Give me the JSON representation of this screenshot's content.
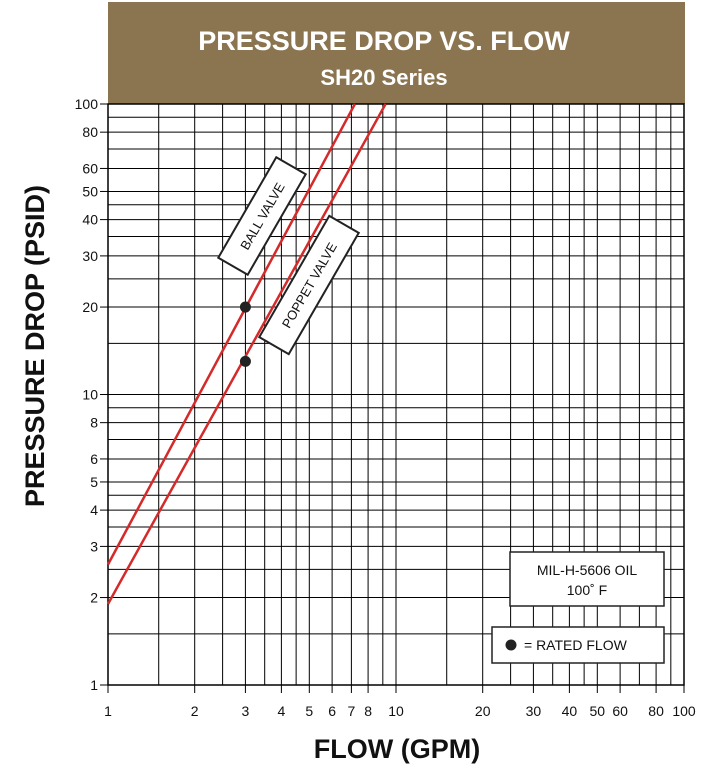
{
  "chart_data": {
    "type": "line",
    "title": "PRESSURE DROP VS. FLOW",
    "subtitle": "SH20 Series",
    "xlabel": "FLOW (GPM)",
    "ylabel": "PRESSURE DROP (PSID)",
    "x_scale": "log",
    "y_scale": "log",
    "xlim": [
      1,
      100
    ],
    "ylim": [
      1,
      100
    ],
    "x_tick_labels": [
      {
        "value": 1,
        "label": "1"
      },
      {
        "value": 2,
        "label": "2"
      },
      {
        "value": 3,
        "label": "3"
      },
      {
        "value": 4,
        "label": "4"
      },
      {
        "value": 5,
        "label": "5"
      },
      {
        "value": 6,
        "label": "6"
      },
      {
        "value": 7,
        "label": "7"
      },
      {
        "value": 8,
        "label": "8"
      },
      {
        "value": 10,
        "label": "10"
      },
      {
        "value": 20,
        "label": "20"
      },
      {
        "value": 30,
        "label": "30"
      },
      {
        "value": 40,
        "label": "40"
      },
      {
        "value": 50,
        "label": "50"
      },
      {
        "value": 60,
        "label": "60"
      },
      {
        "value": 80,
        "label": "80"
      },
      {
        "value": 100,
        "label": "100"
      }
    ],
    "y_tick_labels": [
      {
        "value": 1,
        "label": "1"
      },
      {
        "value": 2,
        "label": "2"
      },
      {
        "value": 3,
        "label": "3"
      },
      {
        "value": 4,
        "label": "4"
      },
      {
        "value": 5,
        "label": "5"
      },
      {
        "value": 6,
        "label": "6"
      },
      {
        "value": 8,
        "label": "8"
      },
      {
        "value": 10,
        "label": "10"
      },
      {
        "value": 20,
        "label": "20"
      },
      {
        "value": 30,
        "label": "30"
      },
      {
        "value": 40,
        "label": "40"
      },
      {
        "value": 50,
        "label": "50"
      },
      {
        "value": 60,
        "label": "60"
      },
      {
        "value": 80,
        "label": "80"
      },
      {
        "value": 100,
        "label": "100"
      }
    ],
    "x_gridlines": [
      1,
      1.5,
      2,
      2.5,
      3,
      3.5,
      4,
      4.5,
      5,
      6,
      7,
      8,
      9,
      10,
      15,
      20,
      25,
      30,
      35,
      40,
      45,
      50,
      60,
      70,
      80,
      90,
      100
    ],
    "y_gridlines": [
      1,
      1.5,
      2,
      2.5,
      3,
      3.5,
      4,
      4.5,
      5,
      6,
      7,
      8,
      9,
      10,
      15,
      20,
      25,
      30,
      35,
      40,
      45,
      50,
      60,
      70,
      80,
      90,
      100
    ],
    "grid": true,
    "series": [
      {
        "name": "BALL VALVE",
        "color": "#d42a2a",
        "x": [
          1,
          7.2
        ],
        "y": [
          2.6,
          100
        ]
      },
      {
        "name": "POPPET VALVE",
        "color": "#d42a2a",
        "x": [
          1,
          9.2
        ],
        "y": [
          1.9,
          100
        ]
      }
    ],
    "rated_points": [
      {
        "series": "BALL VALVE",
        "x": 3,
        "y": 20
      },
      {
        "series": "POPPET VALVE",
        "x": 3,
        "y": 13
      }
    ],
    "annotation": {
      "line1": "MIL-H-5606 OIL",
      "line2": "100˚ F"
    },
    "legend": {
      "marker_label": "= RATED FLOW",
      "placement": "bottom-right"
    },
    "colors": {
      "header": "#8b7550",
      "line": "#d42a2a",
      "grid": "#000000"
    }
  }
}
